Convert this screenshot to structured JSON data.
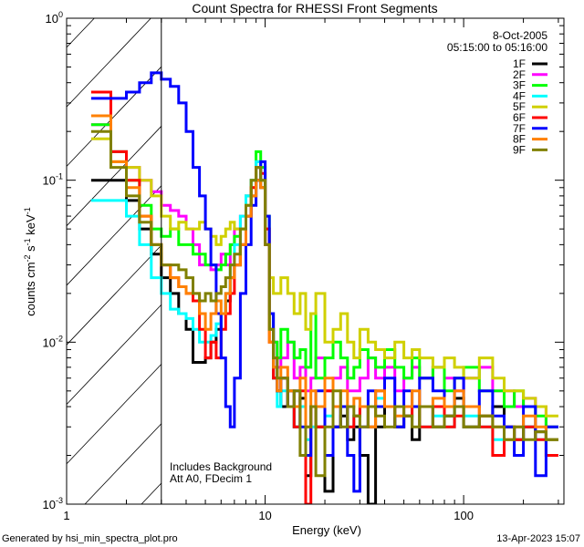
{
  "chart_data": {
    "type": "line",
    "title": "Count Spectra for RHESSI Front Segments",
    "xlabel": "Energy (keV)",
    "ylabel": "counts cm^-2 s^-1 keV^-1",
    "xscale": "log",
    "yscale": "log",
    "xlim": [
      1,
      320
    ],
    "ylim": [
      0.001,
      1
    ],
    "x_ticks": [
      {
        "value": 1,
        "label": "1"
      },
      {
        "value": 10,
        "label": "10"
      },
      {
        "value": 100,
        "label": "100"
      }
    ],
    "y_ticks": [
      {
        "value": 1,
        "base": "10",
        "exp": "0"
      },
      {
        "value": 0.1,
        "base": "10",
        "exp": "-1"
      },
      {
        "value": 0.01,
        "base": "10",
        "exp": "-2"
      },
      {
        "value": 0.001,
        "base": "10",
        "exp": "-3"
      }
    ],
    "grid": false,
    "legend_position": "top-right",
    "date": "8-Oct-2005",
    "time_range": "05:15:00 to 05:16:00",
    "annotations": [
      "Includes Background",
      "Att A0, FDecim 1"
    ],
    "hatched_region_kev": [
      1,
      3
    ],
    "energy_edges": [
      1.33,
      1.67,
      2,
      2.33,
      2.67,
      3,
      3.33,
      3.67,
      4,
      4.33,
      4.67,
      5,
      5.33,
      5.67,
      6,
      6.33,
      6.67,
      7,
      7.5,
      8,
      8.5,
      9,
      9.5,
      10,
      10.5,
      11,
      11.5,
      12,
      13,
      14,
      15,
      16,
      17,
      18,
      20,
      22,
      24,
      26,
      28,
      30,
      33,
      36,
      40,
      45,
      50,
      55,
      60,
      70,
      80,
      90,
      100,
      120,
      140,
      160,
      180,
      200,
      230,
      260,
      300
    ],
    "series": [
      {
        "name": "1F",
        "color": "#000000",
        "values": [
          0.1,
          0.1,
          0.075,
          0.05,
          0.035,
          0.025,
          0.02,
          0.015,
          0.012,
          0.0075,
          0.0075,
          0.008,
          0.01,
          0.012,
          0.015,
          0.018,
          0.025,
          0.03,
          0.04,
          0.06,
          0.08,
          0.1,
          0.09,
          0.04,
          0.012,
          0.006,
          0.005,
          0.004,
          0.005,
          0.003,
          0.0045,
          0.0015,
          0.004,
          0.003,
          0.0012,
          0.003,
          0.0035,
          0.0025,
          0.003,
          0.002,
          0.001,
          0.003,
          0.004,
          0.003,
          0.0035,
          0.0025,
          0.004,
          0.003,
          0.0035,
          0.0045,
          0.003,
          0.0035,
          0.004,
          0.003,
          0.0025,
          0.003,
          0.0028,
          0.0025
        ]
      },
      {
        "name": "2F",
        "color": "#ff00ff",
        "values": [
          0.22,
          0.15,
          0.12,
          0.1,
          0.085,
          0.07,
          0.065,
          0.06,
          0.05,
          0.04,
          0.03,
          0.03,
          0.028,
          0.03,
          0.035,
          0.03,
          0.04,
          0.05,
          0.06,
          0.08,
          0.1,
          0.13,
          0.1,
          0.04,
          0.015,
          0.01,
          0.007,
          0.008,
          0.01,
          0.006,
          0.007,
          0.005,
          0.006,
          0.008,
          0.005,
          0.006,
          0.007,
          0.005,
          0.005,
          0.006,
          0.008,
          0.006,
          0.007,
          0.005,
          0.006,
          0.007,
          0.006,
          0.007,
          0.006,
          0.005,
          0.006,
          0.007,
          0.005,
          0.005,
          0.004,
          0.0045,
          0.004,
          0.003
        ]
      },
      {
        "name": "3F",
        "color": "#00ff00",
        "values": [
          0.22,
          0.15,
          0.1,
          0.07,
          0.05,
          0.045,
          0.05,
          0.04,
          0.04,
          0.035,
          0.035,
          0.03,
          0.03,
          0.028,
          0.03,
          0.035,
          0.04,
          0.045,
          0.05,
          0.08,
          0.1,
          0.15,
          0.12,
          0.06,
          0.015,
          0.01,
          0.008,
          0.012,
          0.01,
          0.008,
          0.009,
          0.007,
          0.015,
          0.006,
          0.008,
          0.01,
          0.008,
          0.006,
          0.007,
          0.009,
          0.008,
          0.007,
          0.009,
          0.007,
          0.006,
          0.008,
          0.006,
          0.007,
          0.005,
          0.006,
          0.007,
          0.005,
          0.005,
          0.004,
          0.005,
          0.004,
          0.0035,
          0.003
        ]
      },
      {
        "name": "4F",
        "color": "#00ffff",
        "values": [
          0.075,
          0.075,
          0.06,
          0.04,
          0.025,
          0.02,
          0.016,
          0.015,
          0.014,
          0.012,
          0.01,
          0.01,
          0.011,
          0.013,
          0.015,
          0.02,
          0.03,
          0.04,
          0.06,
          0.08,
          0.1,
          0.13,
          0.1,
          0.05,
          0.012,
          0.006,
          0.004,
          0.005,
          0.004,
          0.003,
          0.004,
          0.0025,
          0.003,
          0.004,
          0.0035,
          0.003,
          0.004,
          0.003,
          0.0035,
          0.004,
          0.003,
          0.0045,
          0.004,
          0.003,
          0.0035,
          0.004,
          0.003,
          0.0035,
          0.003,
          0.004,
          0.0035,
          0.003,
          0.0025,
          0.003,
          0.0025,
          0.003,
          0.0025,
          0.0025
        ]
      },
      {
        "name": "5F",
        "color": "#d0d000",
        "values": [
          0.18,
          0.13,
          0.12,
          0.1,
          0.08,
          0.06,
          0.05,
          0.055,
          0.05,
          0.05,
          0.055,
          0.05,
          0.045,
          0.04,
          0.045,
          0.05,
          0.055,
          0.05,
          0.05,
          0.07,
          0.09,
          0.12,
          0.1,
          0.05,
          0.025,
          0.02,
          0.02,
          0.025,
          0.02,
          0.015,
          0.02,
          0.012,
          0.015,
          0.02,
          0.01,
          0.012,
          0.015,
          0.01,
          0.008,
          0.012,
          0.01,
          0.009,
          0.008,
          0.01,
          0.008,
          0.009,
          0.008,
          0.007,
          0.008,
          0.007,
          0.006,
          0.008,
          0.006,
          0.005,
          0.005,
          0.0045,
          0.004,
          0.0035
        ]
      },
      {
        "name": "6F",
        "color": "#ff0000",
        "values": [
          0.35,
          0.15,
          0.1,
          0.06,
          0.04,
          0.03,
          0.025,
          0.022,
          0.02,
          0.018,
          0.012,
          0.008,
          0.01,
          0.008,
          0.012,
          0.015,
          0.02,
          0.03,
          0.04,
          0.06,
          0.09,
          0.12,
          0.11,
          0.05,
          0.01,
          0.006,
          0.005,
          0.006,
          0.004,
          0.003,
          0.005,
          0.001,
          0.004,
          0.003,
          0.005,
          0.003,
          0.004,
          0.003,
          0.0035,
          0.004,
          0.003,
          0.005,
          0.004,
          0.003,
          0.0035,
          0.004,
          0.003,
          0.004,
          0.003,
          0.0035,
          0.004,
          0.003,
          0.002,
          0.003,
          0.0025,
          0.003,
          0.0025,
          0.002
        ]
      },
      {
        "name": "7F",
        "color": "#0000ff",
        "values": [
          0.32,
          0.32,
          0.35,
          0.4,
          0.46,
          0.42,
          0.38,
          0.3,
          0.2,
          0.12,
          0.08,
          0.05,
          0.03,
          0.015,
          0.008,
          0.004,
          0.003,
          0.006,
          0.02,
          0.04,
          0.07,
          0.1,
          0.13,
          0.06,
          0.015,
          0.007,
          0.005,
          0.006,
          0.004,
          0.005,
          0.003,
          0.002,
          0.004,
          0.005,
          0.002,
          0.003,
          0.004,
          0.002,
          0.0012,
          0.003,
          0.005,
          0.004,
          0.006,
          0.003,
          0.005,
          0.004,
          0.006,
          0.005,
          0.004,
          0.006,
          0.004,
          0.005,
          0.0035,
          0.003,
          0.002,
          0.004,
          0.0015,
          0.003
        ]
      },
      {
        "name": "8F",
        "color": "#ff8000",
        "values": [
          0.25,
          0.13,
          0.09,
          0.06,
          0.04,
          0.03,
          0.025,
          0.022,
          0.02,
          0.02,
          0.015,
          0.012,
          0.015,
          0.018,
          0.015,
          0.02,
          0.025,
          0.03,
          0.04,
          0.06,
          0.08,
          0.1,
          0.09,
          0.04,
          0.01,
          0.007,
          0.005,
          0.007,
          0.005,
          0.004,
          0.006,
          0.003,
          0.005,
          0.004,
          0.006,
          0.004,
          0.005,
          0.004,
          0.0045,
          0.004,
          0.003,
          0.005,
          0.004,
          0.0035,
          0.004,
          0.005,
          0.004,
          0.0045,
          0.004,
          0.005,
          0.004,
          0.0035,
          0.003,
          0.0025,
          0.003,
          0.0035,
          0.003,
          0.0025
        ]
      },
      {
        "name": "9F",
        "color": "#808000",
        "values": [
          0.2,
          0.12,
          0.08,
          0.055,
          0.04,
          0.03,
          0.03,
          0.028,
          0.025,
          0.02,
          0.018,
          0.02,
          0.018,
          0.02,
          0.022,
          0.025,
          0.03,
          0.035,
          0.05,
          0.07,
          0.1,
          0.12,
          0.1,
          0.04,
          0.012,
          0.008,
          0.006,
          0.006,
          0.004,
          0.005,
          0.002,
          0.003,
          0.004,
          0.0015,
          0.003,
          0.005,
          0.003,
          0.004,
          0.0035,
          0.003,
          0.004,
          0.0035,
          0.003,
          0.004,
          0.0035,
          0.003,
          0.004,
          0.003,
          0.0035,
          0.004,
          0.003,
          0.0035,
          0.003,
          0.0025,
          0.003,
          0.0025,
          0.0028,
          0.0025
        ]
      }
    ]
  },
  "footer": {
    "generated_by": "Generated by hsi_min_spectra_plot.pro",
    "timestamp": "13-Apr-2023 15:07"
  }
}
